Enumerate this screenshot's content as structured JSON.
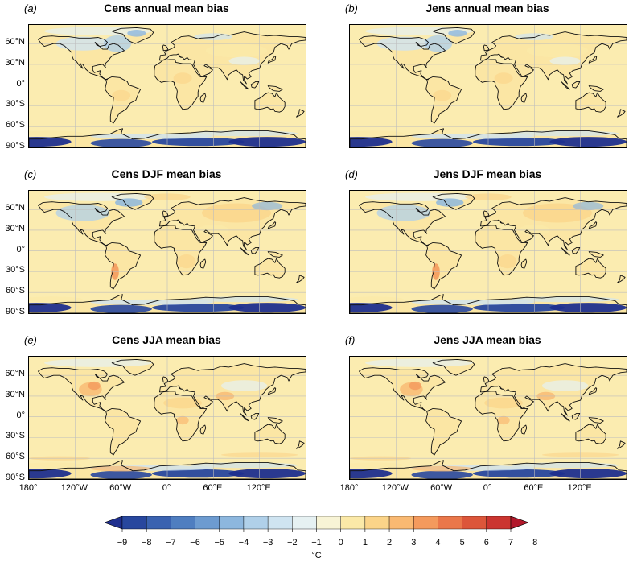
{
  "panels": [
    {
      "tag": "(a)",
      "title": "Cens annual mean bias",
      "variant": "annual"
    },
    {
      "tag": "(b)",
      "title": "Jens annual mean bias",
      "variant": "annual"
    },
    {
      "tag": "(c)",
      "title": "Cens DJF mean bias",
      "variant": "djf"
    },
    {
      "tag": "(d)",
      "title": "Jens DJF mean bias",
      "variant": "djf"
    },
    {
      "tag": "(e)",
      "title": "Cens JJA mean bias",
      "variant": "jja"
    },
    {
      "tag": "(f)",
      "title": "Jens JJA mean bias",
      "variant": "jja"
    }
  ],
  "lat_labels": [
    "60°N",
    "30°N",
    "0°",
    "30°S",
    "60°S",
    "90°S"
  ],
  "lon_labels": [
    "180°",
    "120°W",
    "60°W",
    "0°",
    "60°E",
    "120°E"
  ],
  "colorbar": {
    "ticks": [
      "−9",
      "−8",
      "−7",
      "−6",
      "−5",
      "−4",
      "−3",
      "−2",
      "−1",
      "0",
      "1",
      "2",
      "3",
      "4",
      "5",
      "6",
      "7",
      "8"
    ],
    "unit": "°C",
    "colors": [
      "#1f2f8e",
      "#28479e",
      "#3a62b0",
      "#4f7ec0",
      "#6d9bd0",
      "#8db7de",
      "#b0d0e9",
      "#cfe4f1",
      "#e6f1f2",
      "#f8f4d6",
      "#fbe9a8",
      "#fbd489",
      "#f9b972",
      "#f49a5d",
      "#ea774a",
      "#dc563a",
      "#cb3530",
      "#b2182b"
    ],
    "ocean": "#fbecb0"
  }
}
